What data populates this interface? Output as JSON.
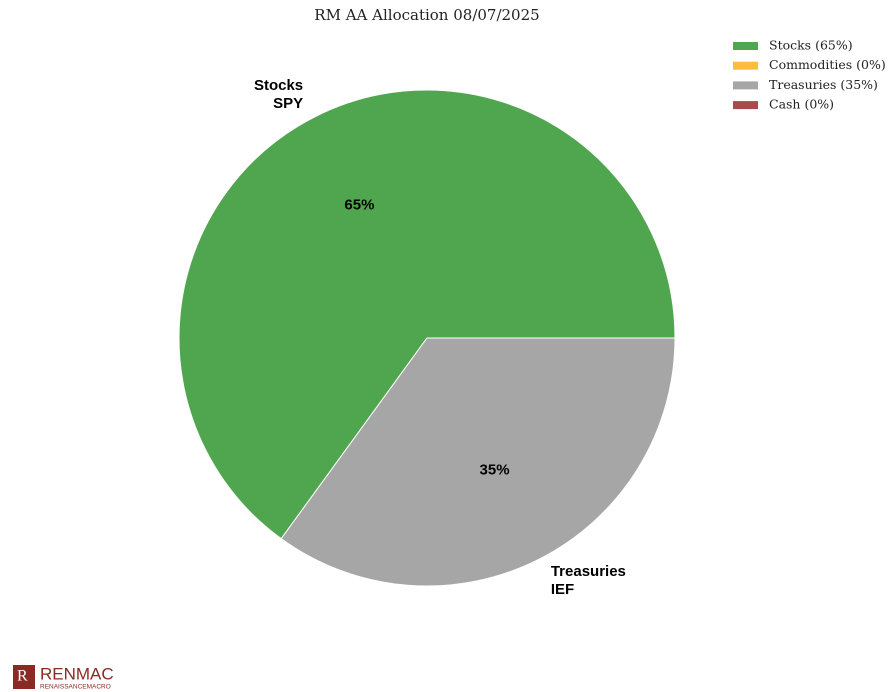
{
  "chart_data": {
    "type": "pie",
    "title": "RM AA Allocation 08/07/2025",
    "categories": [
      "Stocks (65%)",
      "Commodities (0%)",
      "Treasuries (35%)",
      "Cash (0%)"
    ],
    "values": [
      65,
      0,
      35,
      0
    ],
    "value_labels": [
      "65%",
      null,
      "35%",
      null
    ],
    "outer_labels": [
      [
        "Stocks",
        "SPY"
      ],
      null,
      [
        "Treasuries",
        "IEF"
      ],
      null
    ],
    "colors": [
      "#50a64f",
      "#fbbc41",
      "#a6a6a6",
      "#a84b4b"
    ],
    "legend": "upper right"
  },
  "logo": {
    "name": "RENMAC",
    "tagline": "RENAISSANCEMACRO"
  }
}
